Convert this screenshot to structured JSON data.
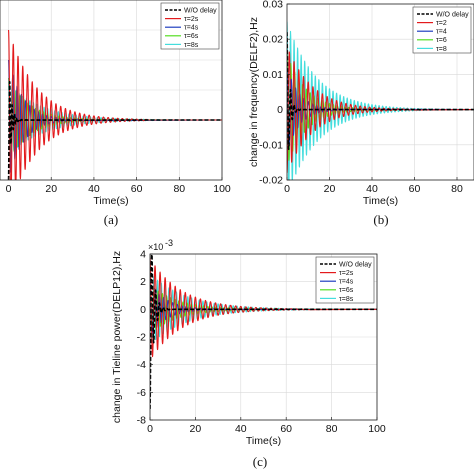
{
  "chart_data": [
    {
      "type": "line",
      "panel": "a",
      "caption": "(a)",
      "xlabel": "Time(s)",
      "ylabel": "",
      "xlim": [
        -4,
        100
      ],
      "ylim": [
        -0.02,
        0.04
      ],
      "xticks": [
        0,
        20,
        40,
        60,
        80,
        100
      ],
      "yticks": [],
      "grid": true,
      "legend": "top-right",
      "legend_entries": [
        "W/O delay",
        "τ=2s",
        "τ=4s",
        "τ=6s",
        "τ=8s"
      ],
      "series": [
        {
          "name": "W/O delay",
          "color": "#000000",
          "dash": true,
          "initial_peak": -0.02,
          "frequency_hz": 0.9,
          "decay_time_s": 1.2,
          "settles_by_s": 4
        },
        {
          "name": "τ=2s",
          "color": "#e31a1c",
          "initial_peak": 0.03,
          "frequency_hz": 0.45,
          "decay_time_s": 13,
          "settles_by_s": 60
        },
        {
          "name": "τ=4s",
          "color": "#1f3fbf",
          "initial_peak": 0.02,
          "frequency_hz": 0.5,
          "decay_time_s": 7,
          "settles_by_s": 30
        },
        {
          "name": "τ=6s",
          "color": "#55dd22",
          "initial_peak": 0.014,
          "frequency_hz": 0.55,
          "decay_time_s": 10,
          "settles_by_s": 70
        },
        {
          "name": "τ=8s",
          "color": "#44dddd",
          "initial_peak": 0.012,
          "frequency_hz": 0.6,
          "decay_time_s": 16,
          "settles_by_s": 100
        }
      ]
    },
    {
      "type": "line",
      "panel": "b",
      "caption": "(b)",
      "xlabel": "Time(s)",
      "ylabel": "change in frequency(DELF2),Hz",
      "xlim": [
        0,
        88
      ],
      "ylim": [
        -0.02,
        0.03
      ],
      "xticks": [
        0,
        20,
        40,
        60,
        80
      ],
      "yticks": [
        -0.02,
        -0.01,
        0,
        0.01,
        0.02,
        0.03
      ],
      "ytick_labels": [
        "-0.02",
        "-0.01",
        "0",
        "0.01",
        "0.02",
        "0.03"
      ],
      "grid": true,
      "legend": "top-right",
      "legend_entries": [
        "W/O delay",
        "τ=2",
        "τ=4",
        "τ=6",
        "τ=8"
      ],
      "series": [
        {
          "name": "W/O delay",
          "color": "#000000",
          "dash": true,
          "initial_peak": 0.022,
          "frequency_hz": 0.6,
          "decay_time_s": 1.2,
          "settles_by_s": 5
        },
        {
          "name": "τ=2",
          "color": "#e31a1c",
          "initial_peak": -0.018,
          "frequency_hz": 0.45,
          "decay_time_s": 12,
          "settles_by_s": 55
        },
        {
          "name": "τ=4",
          "color": "#1f3fbf",
          "initial_peak": 0.012,
          "frequency_hz": 0.5,
          "decay_time_s": 6,
          "settles_by_s": 25
        },
        {
          "name": "τ=6",
          "color": "#55dd22",
          "initial_peak": 0.016,
          "frequency_hz": 0.55,
          "decay_time_s": 9,
          "settles_by_s": 60
        },
        {
          "name": "τ=8",
          "color": "#44dddd",
          "initial_peak": 0.025,
          "frequency_hz": 0.6,
          "decay_time_s": 14,
          "settles_by_s": 88
        }
      ]
    },
    {
      "type": "line",
      "panel": "c",
      "caption": "(c)",
      "xlabel": "Time(s)",
      "ylabel": "change in Tieline power(DELP12),Hz",
      "multiplier": "×10",
      "multiplier_exp": "-3",
      "xlim": [
        0,
        100
      ],
      "ylim": [
        -8,
        4
      ],
      "xticks": [
        0,
        20,
        40,
        60,
        80,
        100
      ],
      "yticks": [
        -8,
        -6,
        -4,
        -2,
        0,
        2,
        4
      ],
      "ytick_labels": [
        "-8",
        "-6",
        "-4",
        "-2",
        "0",
        "2",
        "4"
      ],
      "grid": true,
      "legend": "top-right",
      "legend_entries": [
        "W/O delay",
        "τ=2s",
        "τ=4s",
        "τ=6s",
        "τ=8s"
      ],
      "series": [
        {
          "name": "W/O delay",
          "color": "#000000",
          "dash": true,
          "initial_peak": -7.2,
          "frequency_hz": 0.6,
          "decay_time_s": 1.5,
          "settles_by_s": 6
        },
        {
          "name": "τ=2s",
          "color": "#e31a1c",
          "initial_peak": 3.7,
          "frequency_hz": 0.45,
          "decay_time_s": 14,
          "settles_by_s": 65
        },
        {
          "name": "τ=4s",
          "color": "#1f3fbf",
          "initial_peak": 2.0,
          "frequency_hz": 0.5,
          "decay_time_s": 7,
          "settles_by_s": 30
        },
        {
          "name": "τ=6s",
          "color": "#55dd22",
          "initial_peak": 1.8,
          "frequency_hz": 0.55,
          "decay_time_s": 12,
          "settles_by_s": 80
        },
        {
          "name": "τ=8s",
          "color": "#44dddd",
          "initial_peak": 2.6,
          "frequency_hz": 0.6,
          "decay_time_s": 16,
          "settles_by_s": 100
        }
      ]
    }
  ]
}
